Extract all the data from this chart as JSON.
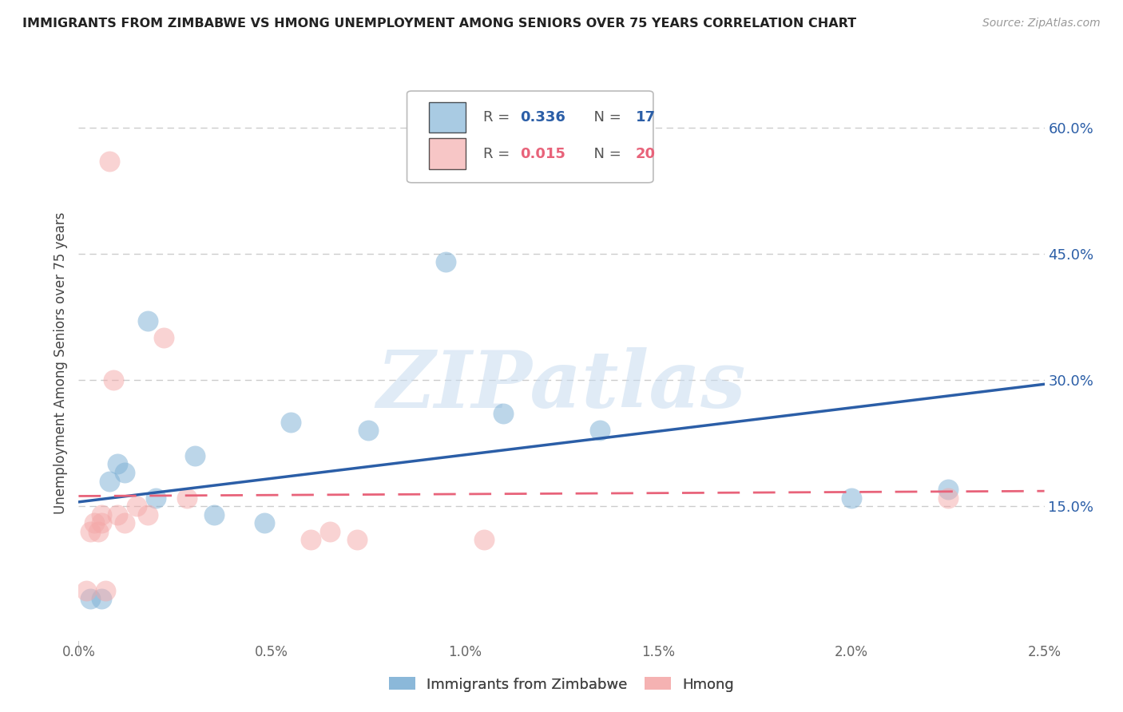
{
  "title": "IMMIGRANTS FROM ZIMBABWE VS HMONG UNEMPLOYMENT AMONG SENIORS OVER 75 YEARS CORRELATION CHART",
  "source": "Source: ZipAtlas.com",
  "ylabel": "Unemployment Among Seniors over 75 years",
  "xlim": [
    0.0,
    0.025
  ],
  "ylim": [
    -0.01,
    0.65
  ],
  "right_yticks": [
    0.15,
    0.3,
    0.45,
    0.6
  ],
  "right_yticklabels": [
    "15.0%",
    "30.0%",
    "45.0%",
    "60.0%"
  ],
  "xticks": [
    0.0,
    0.005,
    0.01,
    0.015,
    0.02,
    0.025
  ],
  "xticklabels": [
    "0.0%",
    "0.5%",
    "1.0%",
    "1.5%",
    "2.0%",
    "2.5%"
  ],
  "legend_label1": "Immigrants from Zimbabwe",
  "legend_label2": "Hmong",
  "color_blue": "#7BAFD4",
  "color_pink": "#F4A8A8",
  "color_blue_line": "#2B5EA7",
  "color_pink_line": "#E8637A",
  "watermark_text": "ZIPatlas",
  "zimbabwe_x": [
    0.0003,
    0.0006,
    0.0008,
    0.001,
    0.0012,
    0.0018,
    0.002,
    0.003,
    0.0035,
    0.0048,
    0.0055,
    0.0075,
    0.0095,
    0.011,
    0.0135,
    0.02,
    0.0225
  ],
  "zimbabwe_y": [
    0.04,
    0.04,
    0.18,
    0.2,
    0.19,
    0.37,
    0.16,
    0.21,
    0.14,
    0.13,
    0.25,
    0.24,
    0.44,
    0.26,
    0.24,
    0.16,
    0.17
  ],
  "hmong_x": [
    0.0002,
    0.0003,
    0.0004,
    0.0005,
    0.0006,
    0.0006,
    0.0007,
    0.0008,
    0.0009,
    0.001,
    0.0012,
    0.0015,
    0.0018,
    0.0022,
    0.0028,
    0.006,
    0.0065,
    0.0072,
    0.0105,
    0.0225
  ],
  "hmong_y": [
    0.05,
    0.12,
    0.13,
    0.12,
    0.13,
    0.14,
    0.05,
    0.56,
    0.3,
    0.14,
    0.13,
    0.15,
    0.14,
    0.35,
    0.16,
    0.11,
    0.12,
    0.11,
    0.11,
    0.16
  ],
  "dot_size": 350,
  "dot_alpha": 0.5,
  "gridline_color": "#CCCCCC",
  "background_color": "#FFFFFF",
  "zim_trendline_x": [
    0.0,
    0.025
  ],
  "zim_trendline_y": [
    0.155,
    0.295
  ],
  "hmong_trendline_x": [
    0.0,
    0.025
  ],
  "hmong_trendline_y": [
    0.162,
    0.168
  ]
}
